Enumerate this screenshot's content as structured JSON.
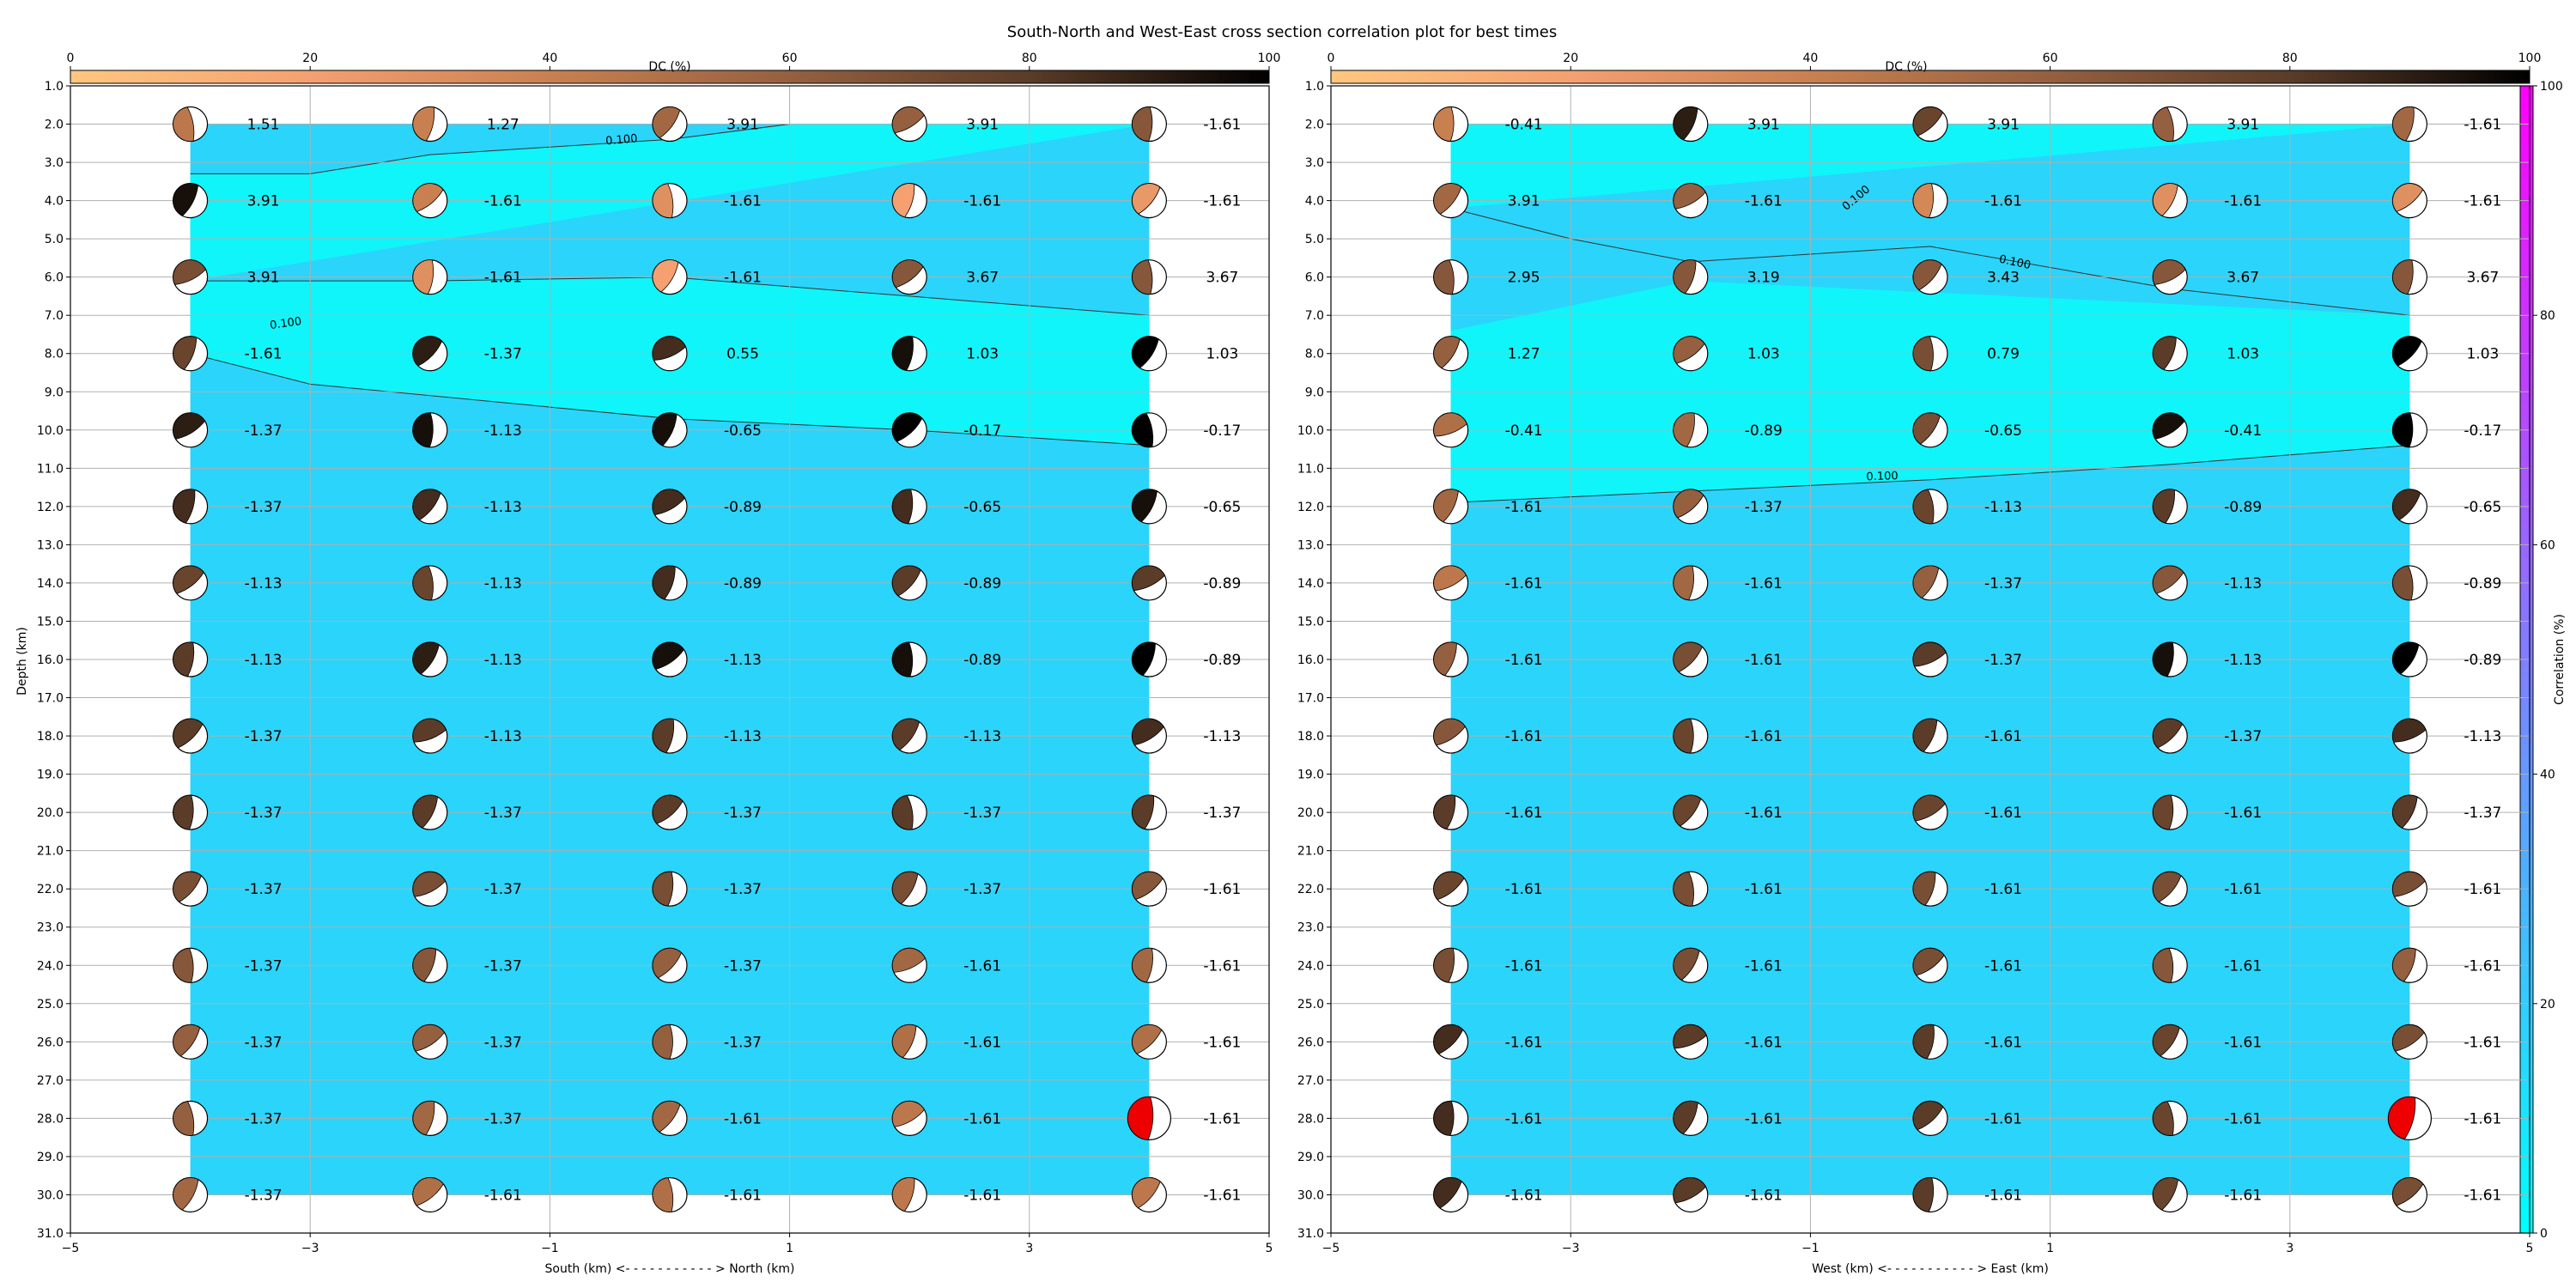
{
  "chart_data": {
    "type": "scatter",
    "title": "South-North and West-East cross section correlation plot for best times",
    "dc_colorbar": {
      "label": "DC (%)",
      "range": [
        0,
        100
      ],
      "ticks": [
        "0",
        "20",
        "40",
        "60",
        "80",
        "100"
      ],
      "colormap": "copper_r"
    },
    "corr_colorbar": {
      "label": "Correlation (%)",
      "range": [
        0,
        100
      ],
      "ticks": [
        "0",
        "20",
        "40",
        "60",
        "80",
        "100"
      ],
      "colormap": "cool"
    },
    "y_ticks": [
      "1.0",
      "2.0",
      "3.0",
      "4.0",
      "5.0",
      "6.0",
      "7.0",
      "8.0",
      "9.0",
      "10.0",
      "11.0",
      "12.0",
      "13.0",
      "14.0",
      "15.0",
      "16.0",
      "17.0",
      "18.0",
      "19.0",
      "20.0",
      "21.0",
      "22.0",
      "23.0",
      "24.0",
      "25.0",
      "26.0",
      "27.0",
      "28.0",
      "29.0",
      "30.0",
      "31.0"
    ],
    "x_ticks": [
      "−5",
      "−3",
      "−1",
      "1",
      "3",
      "5"
    ],
    "grid": true,
    "contour_label": "0.100",
    "depths": [
      2,
      4,
      6,
      8,
      10,
      12,
      14,
      16,
      18,
      20,
      22,
      24,
      26,
      28,
      30
    ],
    "positions": [
      -4,
      -2,
      0,
      2,
      4
    ],
    "panels": [
      {
        "name": "south-north",
        "ylabel": "Depth (km)",
        "xlabel": "South (km) <- - - - - - - - - - - > North (km)",
        "xlim": [
          -5,
          5
        ],
        "ylim": [
          1,
          31
        ],
        "values": [
          [
            "1.51",
            "1.27",
            "3.91",
            "3.91",
            "-1.61"
          ],
          [
            "3.91",
            "-1.61",
            "-1.61",
            "-1.61",
            "-1.61"
          ],
          [
            "3.91",
            "-1.61",
            "-1.61",
            "3.67",
            "3.67"
          ],
          [
            "-1.61",
            "-1.37",
            "0.55",
            "1.03",
            "1.03"
          ],
          [
            "-1.37",
            "-1.13",
            "-0.65",
            "-0.17",
            "-0.17"
          ],
          [
            "-1.37",
            "-1.13",
            "-0.89",
            "-0.65",
            "-0.65"
          ],
          [
            "-1.13",
            "-1.13",
            "-0.89",
            "-0.89",
            "-0.89"
          ],
          [
            "-1.13",
            "-1.13",
            "-1.13",
            "-0.89",
            "-0.89"
          ],
          [
            "-1.37",
            "-1.13",
            "-1.13",
            "-1.13",
            "-1.13"
          ],
          [
            "-1.37",
            "-1.37",
            "-1.37",
            "-1.37",
            "-1.37"
          ],
          [
            "-1.37",
            "-1.37",
            "-1.37",
            "-1.37",
            "-1.61"
          ],
          [
            "-1.37",
            "-1.37",
            "-1.37",
            "-1.61",
            "-1.61"
          ],
          [
            "-1.37",
            "-1.37",
            "-1.37",
            "-1.61",
            "-1.61"
          ],
          [
            "-1.37",
            "-1.37",
            "-1.61",
            "-1.61",
            "-1.61"
          ],
          [
            "-1.37",
            "-1.61",
            "-1.61",
            "-1.61",
            "-1.61"
          ]
        ],
        "dc": [
          [
            45,
            40,
            55,
            60,
            65
          ],
          [
            95,
            40,
            30,
            20,
            25
          ],
          [
            70,
            30,
            20,
            65,
            65
          ],
          [
            75,
            90,
            85,
            95,
            100
          ],
          [
            90,
            95,
            95,
            100,
            100
          ],
          [
            85,
            85,
            85,
            85,
            95
          ],
          [
            75,
            75,
            85,
            80,
            80
          ],
          [
            80,
            90,
            95,
            95,
            100
          ],
          [
            80,
            80,
            80,
            80,
            85
          ],
          [
            80,
            80,
            80,
            80,
            80
          ],
          [
            70,
            70,
            70,
            70,
            65
          ],
          [
            65,
            65,
            60,
            55,
            55
          ],
          [
            60,
            60,
            60,
            50,
            50
          ],
          [
            60,
            55,
            55,
            45,
            45
          ],
          [
            55,
            50,
            50,
            45,
            45
          ]
        ],
        "corr_fill": [
          {
            "level": "high",
            "color": "#0ff5fa",
            "top": [
              [
                -4,
                3.3
              ],
              [
                -3,
                3.3
              ],
              [
                -2,
                2.8
              ],
              [
                0,
                2.4
              ],
              [
                1,
                2.0
              ],
              [
                4,
                2.0
              ]
            ],
            "bottom": [
              [
                -4,
                6.1
              ],
              [
                -2,
                6.1
              ],
              [
                0,
                6.0
              ],
              [
                2,
                6.5
              ],
              [
                4,
                7.0
              ],
              [
                4,
                10.4
              ],
              [
                2,
                10.0
              ],
              [
                0,
                9.7
              ],
              [
                -1,
                9.4
              ],
              [
                -3,
                8.8
              ],
              [
                -4,
                8.0
              ]
            ]
          }
        ],
        "best_solution": {
          "x": 4,
          "depth": 28
        }
      },
      {
        "name": "west-east",
        "ylabel": "",
        "xlabel": "West (km) <- - - - - - - - - - - > East (km)",
        "xlim": [
          -5,
          5
        ],
        "ylim": [
          1,
          31
        ],
        "values": [
          [
            "-0.41",
            "3.91",
            "3.91",
            "3.91",
            "-1.61"
          ],
          [
            "3.91",
            "-1.61",
            "-1.61",
            "-1.61",
            "-1.61"
          ],
          [
            "2.95",
            "3.19",
            "3.43",
            "3.67",
            "3.67"
          ],
          [
            "1.27",
            "1.03",
            "0.79",
            "1.03",
            "1.03"
          ],
          [
            "-0.41",
            "-0.89",
            "-0.65",
            "-0.41",
            "-0.17"
          ],
          [
            "-1.61",
            "-1.37",
            "-1.13",
            "-0.89",
            "-0.65"
          ],
          [
            "-1.61",
            "-1.61",
            "-1.37",
            "-1.13",
            "-0.89"
          ],
          [
            "-1.61",
            "-1.61",
            "-1.37",
            "-1.13",
            "-0.89"
          ],
          [
            "-1.61",
            "-1.61",
            "-1.61",
            "-1.37",
            "-1.13"
          ],
          [
            "-1.61",
            "-1.61",
            "-1.61",
            "-1.61",
            "-1.37"
          ],
          [
            "-1.61",
            "-1.61",
            "-1.61",
            "-1.61",
            "-1.61"
          ],
          [
            "-1.61",
            "-1.61",
            "-1.61",
            "-1.61",
            "-1.61"
          ],
          [
            "-1.61",
            "-1.61",
            "-1.61",
            "-1.61",
            "-1.61"
          ],
          [
            "-1.61",
            "-1.61",
            "-1.61",
            "-1.61",
            "-1.61"
          ],
          [
            "-1.61",
            "-1.61",
            "-1.61",
            "-1.61",
            "-1.61"
          ]
        ],
        "dc": [
          [
            40,
            90,
            75,
            60,
            55
          ],
          [
            55,
            60,
            35,
            30,
            30
          ],
          [
            65,
            65,
            65,
            65,
            65
          ],
          [
            60,
            60,
            70,
            80,
            100
          ],
          [
            50,
            55,
            70,
            95,
            100
          ],
          [
            55,
            60,
            75,
            80,
            85
          ],
          [
            45,
            55,
            60,
            65,
            70
          ],
          [
            60,
            70,
            80,
            95,
            100
          ],
          [
            65,
            75,
            80,
            80,
            85
          ],
          [
            80,
            75,
            75,
            75,
            80
          ],
          [
            75,
            70,
            70,
            70,
            70
          ],
          [
            70,
            70,
            70,
            65,
            60
          ],
          [
            85,
            80,
            80,
            75,
            70
          ],
          [
            85,
            80,
            80,
            75,
            70
          ],
          [
            85,
            80,
            80,
            75,
            70
          ]
        ],
        "corr_fill": [
          {
            "level": "high",
            "color": "#0ff5fa",
            "top": [
              [
                -4,
                2.0
              ],
              [
                4,
                2.0
              ]
            ],
            "bottom": [
              [
                -4,
                4.2
              ],
              [
                -3,
                5.0
              ],
              [
                -2,
                5.6
              ],
              [
                0,
                5.2
              ],
              [
                2,
                6.3
              ],
              [
                4,
                7.0
              ],
              [
                4,
                10.4
              ],
              [
                2,
                10.9
              ],
              [
                0,
                11.3
              ],
              [
                -2,
                11.6
              ],
              [
                -4,
                11.9
              ]
            ]
          },
          {
            "level": "low",
            "color": "#2bd4fa",
            "top": [
              [
                -4,
                4.2
              ],
              [
                -3,
                5.0
              ],
              [
                -2,
                5.6
              ],
              [
                0,
                5.2
              ],
              [
                2,
                6.3
              ],
              [
                4,
                7.0
              ]
            ],
            "bottom": [
              [
                -2,
                6.1
              ],
              [
                0,
                6.2
              ],
              [
                -2,
                6.1
              ],
              [
                -4,
                7.4
              ]
            ]
          }
        ],
        "best_solution": {
          "x": 4,
          "depth": 28
        }
      }
    ]
  }
}
